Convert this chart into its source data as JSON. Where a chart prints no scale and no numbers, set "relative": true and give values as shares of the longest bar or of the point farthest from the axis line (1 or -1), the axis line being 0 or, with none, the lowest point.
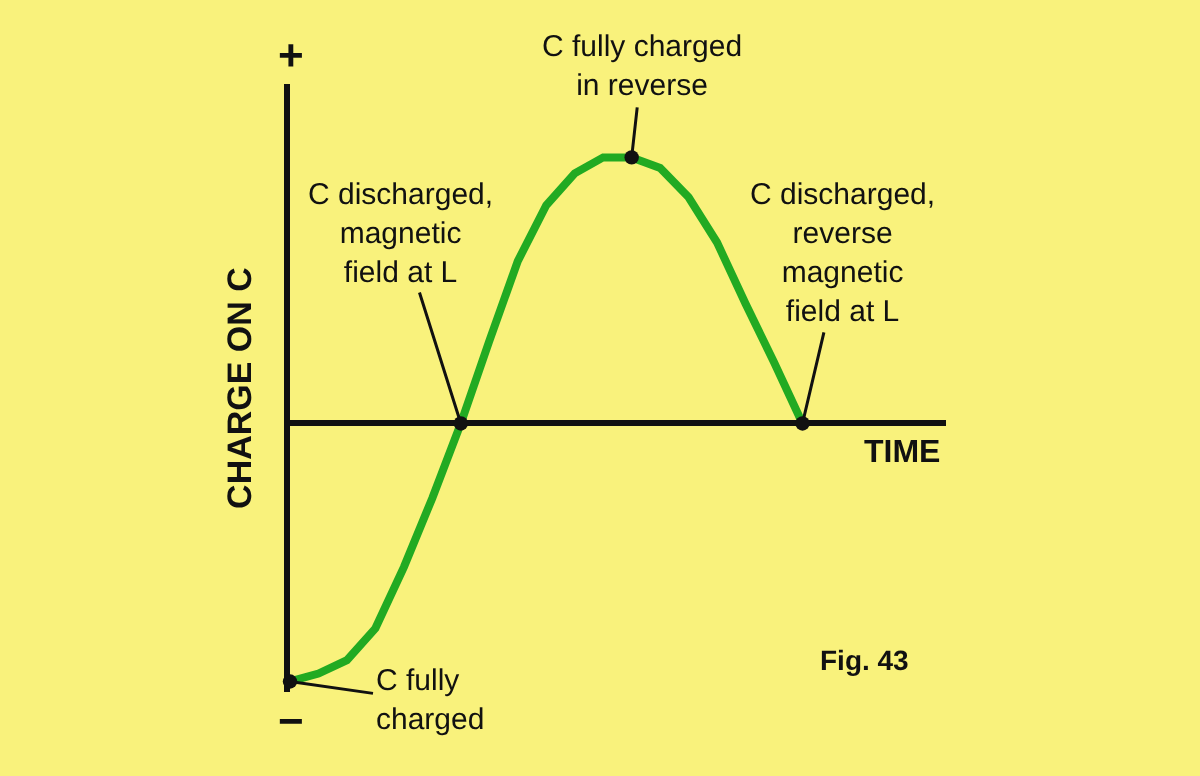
{
  "chart_data": {
    "type": "line",
    "relative": true,
    "xlabel": "TIME",
    "ylabel": "CHARGE ON C",
    "categories": [
      null,
      null,
      null,
      null,
      null,
      null,
      null,
      null,
      null,
      null,
      null,
      null,
      null,
      null,
      null,
      null,
      null,
      null,
      null
    ],
    "series": [
      {
        "color": "#22aa22",
        "values": [
          -0.97,
          -0.94,
          -0.89,
          -0.77,
          -0.54,
          -0.28,
          0,
          0.31,
          0.61,
          0.82,
          0.94,
          1,
          1,
          0.96,
          0.85,
          0.68,
          0.45,
          0.23,
          0
        ]
      }
    ],
    "annotations": [
      "C fully\ncharged",
      "C discharged,\nmagnetic\nfield at L",
      "C fully charged\nin reverse",
      "C discharged,\nreverse\nmagnetic\nfield at L",
      "Fig. 43",
      "+",
      "−"
    ],
    "grid": false
  }
}
